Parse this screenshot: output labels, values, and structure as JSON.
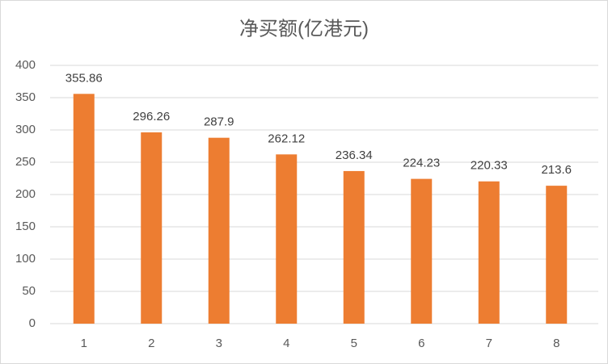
{
  "chart_data": {
    "type": "bar",
    "title": "净买额(亿港元)",
    "categories": [
      "1",
      "2",
      "3",
      "4",
      "5",
      "6",
      "7",
      "8"
    ],
    "values": [
      355.86,
      296.26,
      287.9,
      262.12,
      236.34,
      224.23,
      220.33,
      213.6
    ],
    "color": "#ed7d31",
    "ylim": [
      0,
      400
    ],
    "yticks": [
      0,
      50,
      100,
      150,
      200,
      250,
      300,
      350,
      400
    ],
    "grid": true
  }
}
